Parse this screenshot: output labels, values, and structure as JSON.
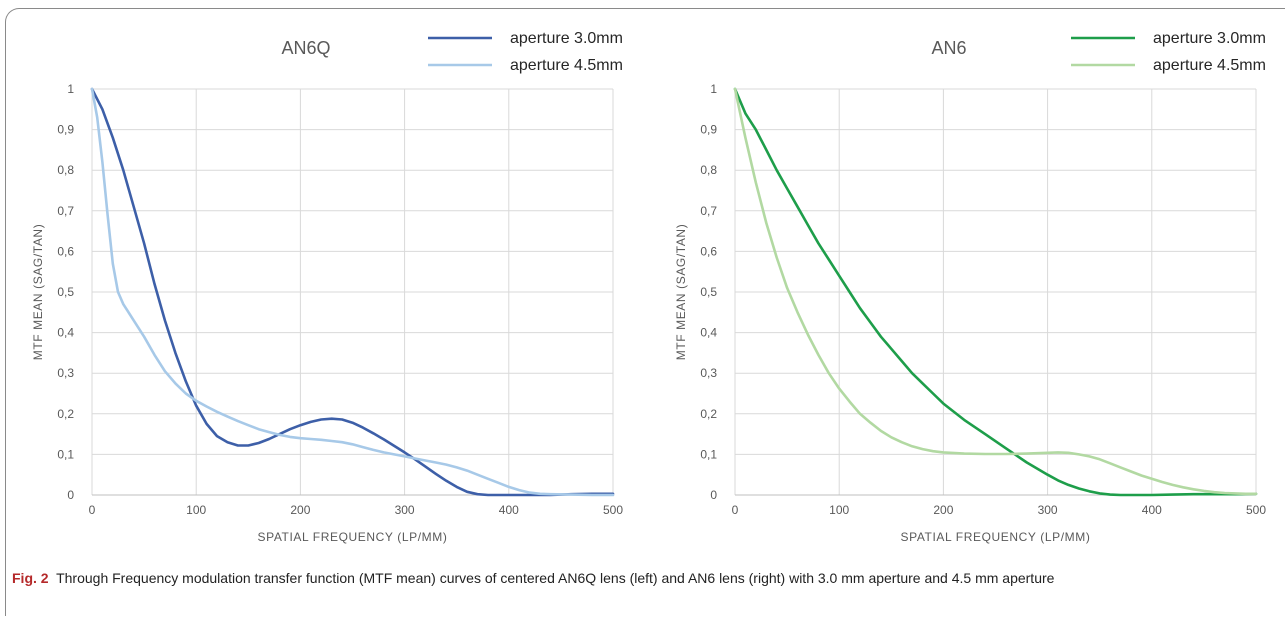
{
  "chart_data": [
    {
      "type": "line",
      "title": "AN6Q",
      "xlabel": "SPATIAL FREQUENCY (LP/MM)",
      "ylabel": "MTF MEAN (SAG/TAN)",
      "xlim": [
        0,
        500
      ],
      "ylim": [
        0,
        1
      ],
      "x_ticks": [
        "0",
        "100",
        "200",
        "300",
        "400",
        "500"
      ],
      "y_ticks": [
        "0",
        "0,1",
        "0,2",
        "0,3",
        "0,4",
        "0,5",
        "0,6",
        "0,7",
        "0,8",
        "0,9",
        "1"
      ],
      "grid": true,
      "legend_position": "top-right",
      "series": [
        {
          "name": "aperture 3.0mm",
          "color": "#3d5fa8",
          "x": [
            0,
            10,
            20,
            30,
            40,
            50,
            60,
            70,
            80,
            90,
            100,
            110,
            120,
            130,
            140,
            150,
            160,
            170,
            180,
            190,
            200,
            210,
            220,
            230,
            240,
            250,
            260,
            270,
            280,
            290,
            300,
            310,
            320,
            330,
            340,
            350,
            360,
            370,
            380,
            400,
            420,
            440,
            460,
            480,
            500
          ],
          "values": [
            1.0,
            0.95,
            0.88,
            0.8,
            0.71,
            0.62,
            0.52,
            0.43,
            0.35,
            0.28,
            0.22,
            0.175,
            0.145,
            0.13,
            0.122,
            0.122,
            0.128,
            0.138,
            0.15,
            0.162,
            0.172,
            0.18,
            0.186,
            0.188,
            0.186,
            0.178,
            0.166,
            0.152,
            0.137,
            0.121,
            0.105,
            0.088,
            0.07,
            0.052,
            0.035,
            0.02,
            0.008,
            0.002,
            0.0,
            0.0,
            0.0,
            0.0,
            0.002,
            0.003,
            0.003
          ]
        },
        {
          "name": "aperture 4.5mm",
          "color": "#a7c9e8",
          "x": [
            0,
            5,
            10,
            15,
            20,
            25,
            30,
            40,
            50,
            60,
            70,
            80,
            90,
            100,
            110,
            120,
            130,
            140,
            150,
            160,
            170,
            180,
            190,
            200,
            210,
            220,
            230,
            240,
            250,
            260,
            270,
            280,
            290,
            300,
            310,
            320,
            330,
            340,
            350,
            360,
            370,
            380,
            390,
            400,
            410,
            420,
            430,
            440,
            460,
            480,
            500
          ],
          "values": [
            1.0,
            0.93,
            0.82,
            0.69,
            0.57,
            0.5,
            0.47,
            0.43,
            0.39,
            0.345,
            0.305,
            0.275,
            0.25,
            0.232,
            0.218,
            0.205,
            0.193,
            0.182,
            0.172,
            0.162,
            0.155,
            0.148,
            0.143,
            0.14,
            0.138,
            0.136,
            0.133,
            0.13,
            0.125,
            0.118,
            0.111,
            0.105,
            0.1,
            0.095,
            0.09,
            0.085,
            0.08,
            0.075,
            0.068,
            0.06,
            0.05,
            0.04,
            0.03,
            0.02,
            0.012,
            0.006,
            0.003,
            0.002,
            0.001,
            0.0,
            0.0
          ]
        }
      ]
    },
    {
      "type": "line",
      "title": "AN6",
      "xlabel": "SPATIAL FREQUENCY (LP/MM)",
      "ylabel": "MTF MEAN (SAG/TAN)",
      "xlim": [
        0,
        500
      ],
      "ylim": [
        0,
        1
      ],
      "x_ticks": [
        "0",
        "100",
        "200",
        "300",
        "400",
        "500"
      ],
      "y_ticks": [
        "0",
        "0,1",
        "0,2",
        "0,3",
        "0,4",
        "0,5",
        "0,6",
        "0,7",
        "0,8",
        "0,9",
        "1"
      ],
      "grid": true,
      "legend_position": "top-right",
      "series": [
        {
          "name": "aperture 3.0mm",
          "color": "#1e9e4a",
          "x": [
            0,
            10,
            20,
            30,
            40,
            50,
            60,
            70,
            80,
            90,
            100,
            110,
            120,
            130,
            140,
            150,
            160,
            170,
            180,
            190,
            200,
            220,
            240,
            260,
            280,
            300,
            310,
            320,
            330,
            340,
            350,
            360,
            370,
            380,
            400,
            420,
            440,
            460,
            480,
            500
          ],
          "values": [
            1.0,
            0.94,
            0.9,
            0.85,
            0.8,
            0.755,
            0.71,
            0.665,
            0.62,
            0.58,
            0.54,
            0.5,
            0.46,
            0.425,
            0.39,
            0.36,
            0.33,
            0.3,
            0.275,
            0.25,
            0.225,
            0.185,
            0.15,
            0.115,
            0.08,
            0.05,
            0.036,
            0.025,
            0.016,
            0.009,
            0.004,
            0.001,
            0.0,
            0.0,
            0.0,
            0.001,
            0.002,
            0.002,
            0.002,
            0.003
          ]
        },
        {
          "name": "aperture 4.5mm",
          "color": "#b2d9a2",
          "x": [
            0,
            10,
            20,
            30,
            40,
            50,
            60,
            70,
            80,
            90,
            100,
            110,
            120,
            130,
            140,
            150,
            160,
            170,
            180,
            190,
            200,
            220,
            240,
            260,
            280,
            300,
            310,
            320,
            330,
            340,
            350,
            360,
            370,
            380,
            390,
            400,
            410,
            420,
            430,
            440,
            450,
            460,
            470,
            480,
            490,
            500
          ],
          "values": [
            1.0,
            0.88,
            0.77,
            0.67,
            0.585,
            0.51,
            0.45,
            0.395,
            0.345,
            0.3,
            0.262,
            0.23,
            0.2,
            0.178,
            0.158,
            0.142,
            0.13,
            0.12,
            0.113,
            0.108,
            0.105,
            0.102,
            0.101,
            0.101,
            0.102,
            0.104,
            0.105,
            0.104,
            0.1,
            0.095,
            0.088,
            0.078,
            0.068,
            0.058,
            0.048,
            0.04,
            0.032,
            0.025,
            0.019,
            0.014,
            0.01,
            0.007,
            0.005,
            0.004,
            0.003,
            0.003
          ]
        }
      ]
    }
  ],
  "caption": {
    "label": "Fig. 2",
    "text": "Through Frequency modulation transfer function (MTF mean) curves of centered AN6Q lens (left) and AN6 lens (right) with 3.0 mm aperture and 4.5 mm aperture"
  }
}
